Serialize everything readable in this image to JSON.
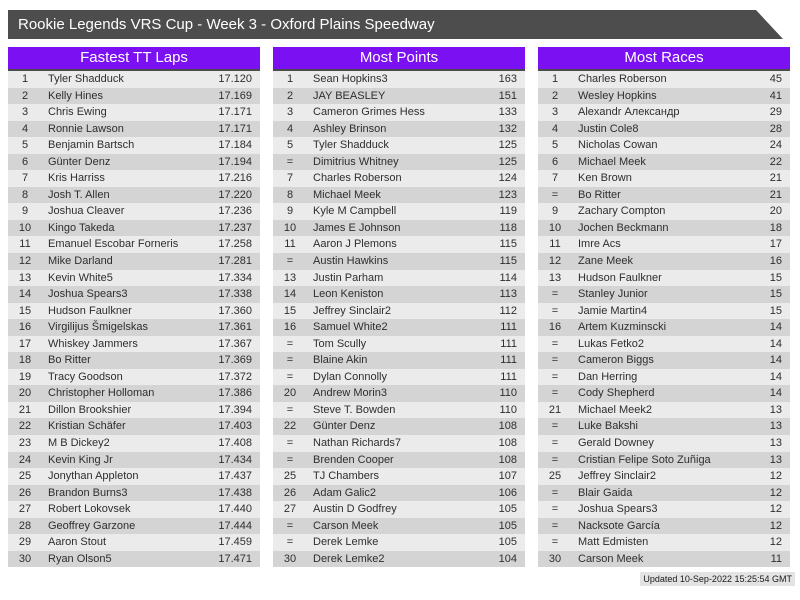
{
  "title_bar": {
    "text": "Rookie Legends VRS Cup - Week 3 - Oxford Plains Speedway"
  },
  "footer": {
    "updated": "Updated 10-Sep-2022 15:25:54 GMT"
  },
  "colors": {
    "accent_purple": "#7b10f2",
    "title_bar_bg": "#4d4d4d",
    "row_light": "#ebebeb",
    "row_dark": "#d4d4d4"
  },
  "leaderboards": [
    {
      "title": "Fastest TT Laps",
      "rows": [
        {
          "rank": "1",
          "name": "Tyler Shadduck",
          "value": "17.120"
        },
        {
          "rank": "2",
          "name": "Kelly Hines",
          "value": "17.169"
        },
        {
          "rank": "3",
          "name": "Chris Ewing",
          "value": "17.171"
        },
        {
          "rank": "4",
          "name": "Ronnie Lawson",
          "value": "17.171"
        },
        {
          "rank": "5",
          "name": "Benjamin Bartsch",
          "value": "17.184"
        },
        {
          "rank": "6",
          "name": "Günter Denz",
          "value": "17.194"
        },
        {
          "rank": "7",
          "name": "Kris Harriss",
          "value": "17.216"
        },
        {
          "rank": "8",
          "name": "Josh T. Allen",
          "value": "17.220"
        },
        {
          "rank": "9",
          "name": "Joshua Cleaver",
          "value": "17.236"
        },
        {
          "rank": "10",
          "name": "Kingo Takeda",
          "value": "17.237"
        },
        {
          "rank": "11",
          "name": "Emanuel Escobar Forneris",
          "value": "17.258"
        },
        {
          "rank": "12",
          "name": "Mike Darland",
          "value": "17.281"
        },
        {
          "rank": "13",
          "name": "Kevin White5",
          "value": "17.334"
        },
        {
          "rank": "14",
          "name": "Joshua Spears3",
          "value": "17.338"
        },
        {
          "rank": "15",
          "name": "Hudson Faulkner",
          "value": "17.360"
        },
        {
          "rank": "16",
          "name": "Virgilijus Šmigelskas",
          "value": "17.361"
        },
        {
          "rank": "17",
          "name": "Whiskey Jammers",
          "value": "17.367"
        },
        {
          "rank": "18",
          "name": "Bo Ritter",
          "value": "17.369"
        },
        {
          "rank": "19",
          "name": "Tracy Goodson",
          "value": "17.372"
        },
        {
          "rank": "20",
          "name": "Christopher Holloman",
          "value": "17.386"
        },
        {
          "rank": "21",
          "name": "Dillon Brookshier",
          "value": "17.394"
        },
        {
          "rank": "22",
          "name": "Kristian Schäfer",
          "value": "17.403"
        },
        {
          "rank": "23",
          "name": "M B Dickey2",
          "value": "17.408"
        },
        {
          "rank": "24",
          "name": "Kevin King Jr",
          "value": "17.434"
        },
        {
          "rank": "25",
          "name": "Jonythan Appleton",
          "value": "17.437"
        },
        {
          "rank": "26",
          "name": "Brandon Burns3",
          "value": "17.438"
        },
        {
          "rank": "27",
          "name": "Robert Lokovsek",
          "value": "17.440"
        },
        {
          "rank": "28",
          "name": "Geoffrey Garzone",
          "value": "17.444"
        },
        {
          "rank": "29",
          "name": "Aaron Stout",
          "value": "17.459"
        },
        {
          "rank": "30",
          "name": "Ryan Olson5",
          "value": "17.471"
        }
      ]
    },
    {
      "title": "Most Points",
      "rows": [
        {
          "rank": "1",
          "name": "Sean Hopkins3",
          "value": "163"
        },
        {
          "rank": "2",
          "name": "JAY BEASLEY",
          "value": "151"
        },
        {
          "rank": "3",
          "name": "Cameron Grimes Hess",
          "value": "133"
        },
        {
          "rank": "4",
          "name": "Ashley Brinson",
          "value": "132"
        },
        {
          "rank": "5",
          "name": "Tyler Shadduck",
          "value": "125"
        },
        {
          "rank": "=",
          "name": "Dimitrius Whitney",
          "value": "125"
        },
        {
          "rank": "7",
          "name": "Charles Roberson",
          "value": "124"
        },
        {
          "rank": "8",
          "name": "Michael Meek",
          "value": "123"
        },
        {
          "rank": "9",
          "name": "Kyle M Campbell",
          "value": "119"
        },
        {
          "rank": "10",
          "name": "James E Johnson",
          "value": "118"
        },
        {
          "rank": "11",
          "name": "Aaron J Plemons",
          "value": "115"
        },
        {
          "rank": "=",
          "name": "Austin Hawkins",
          "value": "115"
        },
        {
          "rank": "13",
          "name": "Justin Parham",
          "value": "114"
        },
        {
          "rank": "14",
          "name": "Leon Keniston",
          "value": "113"
        },
        {
          "rank": "15",
          "name": "Jeffrey Sinclair2",
          "value": "112"
        },
        {
          "rank": "16",
          "name": "Samuel White2",
          "value": "111"
        },
        {
          "rank": "=",
          "name": "Tom Scully",
          "value": "111"
        },
        {
          "rank": "=",
          "name": "Blaine Akin",
          "value": "111"
        },
        {
          "rank": "=",
          "name": "Dylan Connolly",
          "value": "111"
        },
        {
          "rank": "20",
          "name": "Andrew Morin3",
          "value": "110"
        },
        {
          "rank": "=",
          "name": "Steve T. Bowden",
          "value": "110"
        },
        {
          "rank": "22",
          "name": "Günter Denz",
          "value": "108"
        },
        {
          "rank": "=",
          "name": "Nathan Richards7",
          "value": "108"
        },
        {
          "rank": "=",
          "name": "Brenden Cooper",
          "value": "108"
        },
        {
          "rank": "25",
          "name": "TJ Chambers",
          "value": "107"
        },
        {
          "rank": "26",
          "name": "Adam Galic2",
          "value": "106"
        },
        {
          "rank": "27",
          "name": "Austin D Godfrey",
          "value": "105"
        },
        {
          "rank": "=",
          "name": "Carson Meek",
          "value": "105"
        },
        {
          "rank": "=",
          "name": "Derek Lemke",
          "value": "105"
        },
        {
          "rank": "30",
          "name": "Derek Lemke2",
          "value": "104"
        }
      ]
    },
    {
      "title": "Most Races",
      "rows": [
        {
          "rank": "1",
          "name": "Charles Roberson",
          "value": "45"
        },
        {
          "rank": "2",
          "name": "Wesley Hopkins",
          "value": "41"
        },
        {
          "rank": "3",
          "name": "Alexandr Александр",
          "value": "29"
        },
        {
          "rank": "4",
          "name": "Justin Cole8",
          "value": "28"
        },
        {
          "rank": "5",
          "name": "Nicholas Cowan",
          "value": "24"
        },
        {
          "rank": "6",
          "name": "Michael Meek",
          "value": "22"
        },
        {
          "rank": "7",
          "name": "Ken Brown",
          "value": "21"
        },
        {
          "rank": "=",
          "name": "Bo Ritter",
          "value": "21"
        },
        {
          "rank": "9",
          "name": "Zachary Compton",
          "value": "20"
        },
        {
          "rank": "10",
          "name": "Jochen Beckmann",
          "value": "18"
        },
        {
          "rank": "11",
          "name": "Imre Acs",
          "value": "17"
        },
        {
          "rank": "12",
          "name": "Zane Meek",
          "value": "16"
        },
        {
          "rank": "13",
          "name": "Hudson Faulkner",
          "value": "15"
        },
        {
          "rank": "=",
          "name": "Stanley Junior",
          "value": "15"
        },
        {
          "rank": "=",
          "name": "Jamie Martin4",
          "value": "15"
        },
        {
          "rank": "16",
          "name": "Artem Kuzminscki",
          "value": "14"
        },
        {
          "rank": "=",
          "name": "Lukas Fetko2",
          "value": "14"
        },
        {
          "rank": "=",
          "name": "Cameron Biggs",
          "value": "14"
        },
        {
          "rank": "=",
          "name": "Dan Herring",
          "value": "14"
        },
        {
          "rank": "=",
          "name": "Cody Shepherd",
          "value": "14"
        },
        {
          "rank": "21",
          "name": "Michael Meek2",
          "value": "13"
        },
        {
          "rank": "=",
          "name": "Luke Bakshi",
          "value": "13"
        },
        {
          "rank": "=",
          "name": "Gerald Downey",
          "value": "13"
        },
        {
          "rank": "=",
          "name": "Cristian Felipe Soto Zuñiga",
          "value": "13"
        },
        {
          "rank": "25",
          "name": "Jeffrey Sinclair2",
          "value": "12"
        },
        {
          "rank": "=",
          "name": "Blair Gaida",
          "value": "12"
        },
        {
          "rank": "=",
          "name": "Joshua Spears3",
          "value": "12"
        },
        {
          "rank": "=",
          "name": "Nacksote García",
          "value": "12"
        },
        {
          "rank": "=",
          "name": "Matt Edmisten",
          "value": "12"
        },
        {
          "rank": "30",
          "name": "Carson Meek",
          "value": "11"
        }
      ]
    }
  ]
}
